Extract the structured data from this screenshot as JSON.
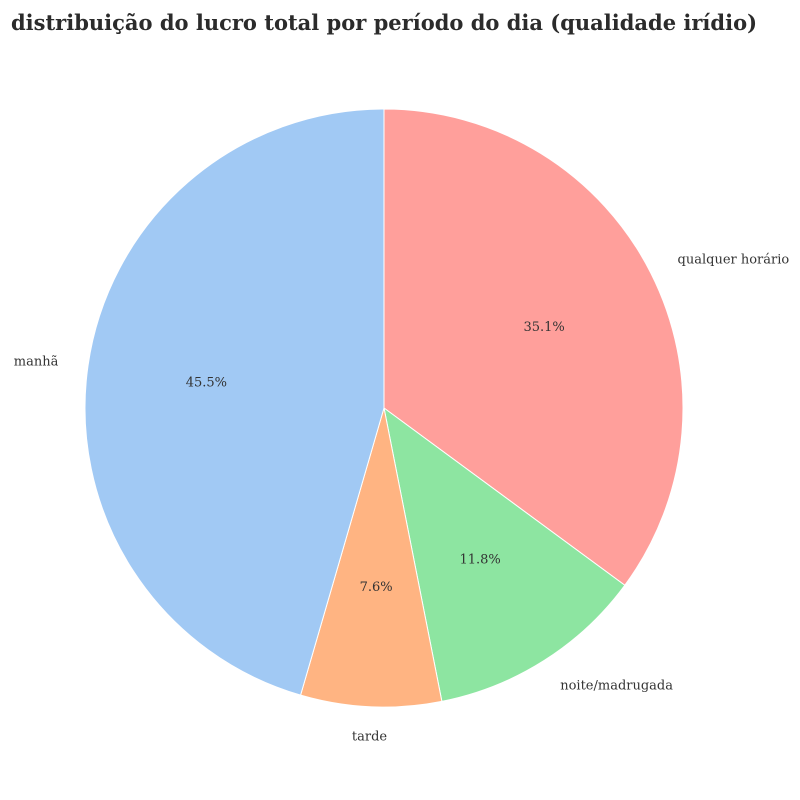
{
  "chart_data": {
    "type": "pie",
    "title": "distribuição do lucro total por período do dia (qualidade irídio)",
    "slices": [
      {
        "label": "qualquer horário",
        "value": 35.1,
        "pct_label": "35.1%",
        "color": "#ff9f9b"
      },
      {
        "label": "noite/madrugada",
        "value": 11.8,
        "pct_label": "11.8%",
        "color": "#8de5a1"
      },
      {
        "label": "tarde",
        "value": 7.6,
        "pct_label": "7.6%",
        "color": "#ffb482"
      },
      {
        "label": "manhã",
        "value": 45.5,
        "pct_label": "45.5%",
        "color": "#a1c9f4"
      }
    ],
    "start_angle_deg": 90,
    "direction": "clockwise"
  }
}
